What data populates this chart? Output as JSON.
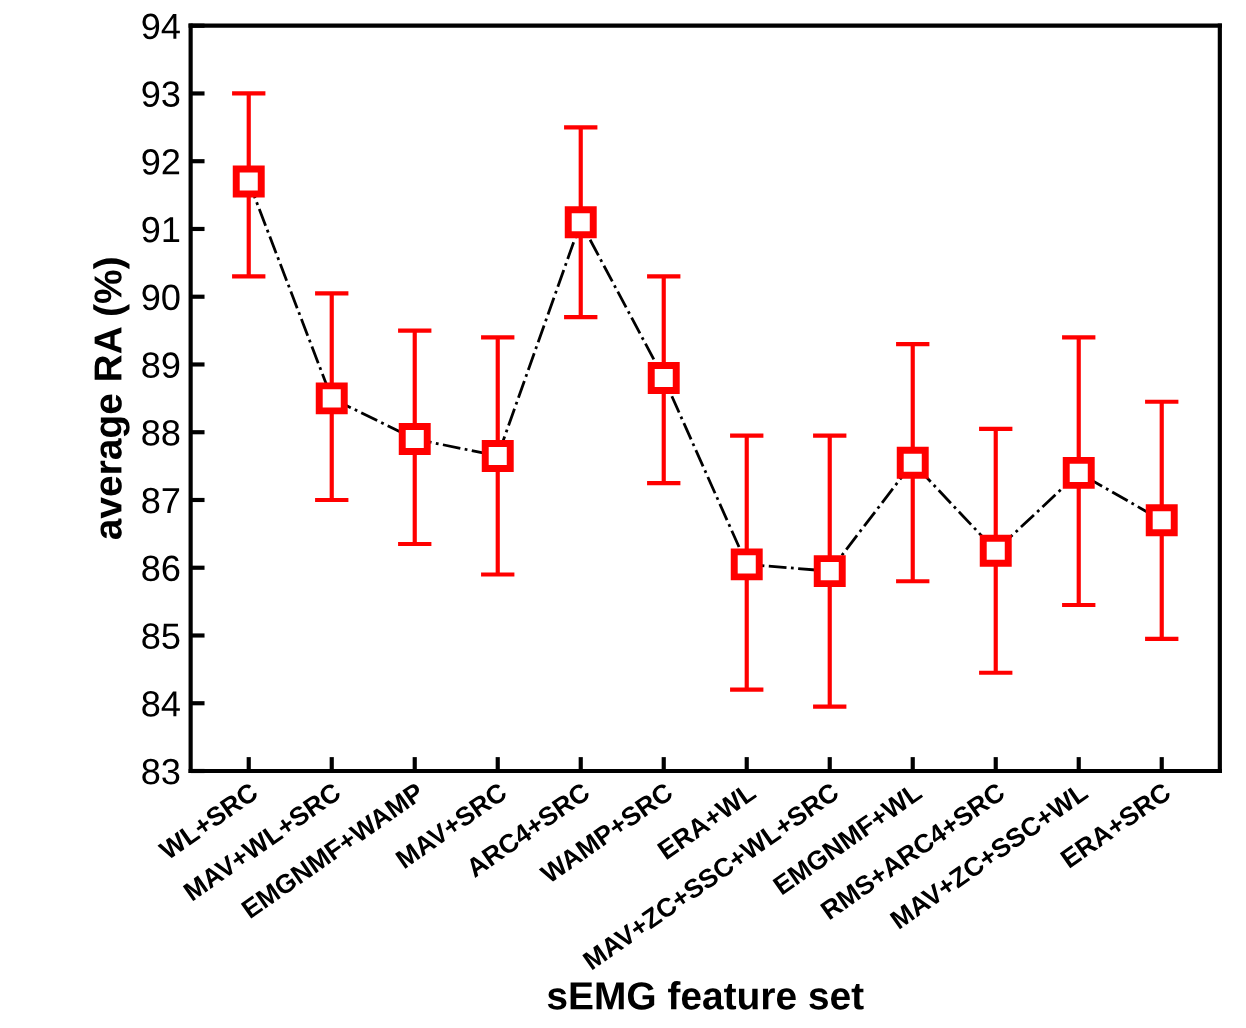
{
  "chart_data": {
    "type": "line",
    "xlabel": "sEMG feature set",
    "ylabel": "average RA (%)",
    "categories": [
      "WL+SRC",
      "MAV+WL+SRC",
      "EMGNMF+WAMP",
      "MAV+SRC",
      "ARC4+SRC",
      "WAMP+SRC",
      "ERA+WL",
      "MAV+ZC+SSC+WL+SRC",
      "EMGNMF+WL",
      "RMS+ARC4+SRC",
      "MAV+ZC+SSC+WL",
      "ERA+SRC"
    ],
    "series": [
      {
        "color": "#ff0000",
        "values": [
          91.7,
          88.5,
          87.9,
          87.65,
          91.1,
          88.8,
          86.05,
          85.95,
          87.55,
          86.25,
          87.4,
          86.7
        ],
        "errors": [
          [
            90.3,
            93.0
          ],
          [
            87.0,
            90.05
          ],
          [
            86.35,
            89.5
          ],
          [
            85.9,
            89.4
          ],
          [
            89.7,
            92.5
          ],
          [
            87.25,
            90.3
          ],
          [
            84.2,
            87.95
          ],
          [
            83.95,
            87.95
          ],
          [
            85.8,
            89.3
          ],
          [
            84.45,
            88.05
          ],
          [
            85.45,
            89.4
          ],
          [
            84.95,
            88.45
          ]
        ]
      }
    ],
    "ylim": [
      83,
      94
    ],
    "yticks": [
      83,
      84,
      85,
      86,
      87,
      88,
      89,
      90,
      91,
      92,
      93,
      94
    ],
    "grid": false,
    "marker": "square",
    "line_style": "dashdot"
  }
}
